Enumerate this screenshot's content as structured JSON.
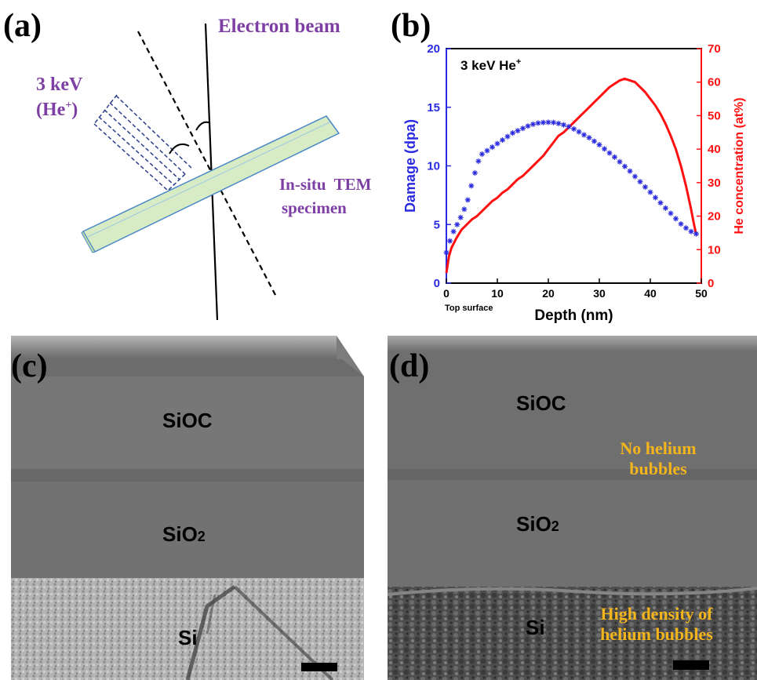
{
  "panel_a": {
    "label": "(a)",
    "beam_label": "Electron beam",
    "ion_label_line1": "3 keV",
    "ion_label_line2": "(He",
    "ion_label_sup": "+",
    "ion_label_close": ")",
    "specimen_line1": "In-situ  TEM",
    "specimen_line2": "specimen"
  },
  "panel_b": {
    "label": "(b)",
    "annotation": "3 keV He",
    "annotation_sup": "+",
    "top_surface": "Top surface",
    "colors": {
      "damage": "#2a2ae0",
      "he": "#ff1010"
    }
  },
  "chart_data": {
    "type": "line",
    "xlabel": "Depth (nm)",
    "ylabel_left": "Damage (dpa)",
    "ylabel_right": "He concentration (at%)",
    "xlim": [
      0,
      50
    ],
    "ylim_left": [
      0,
      20
    ],
    "ylim_right": [
      0,
      70
    ],
    "x_ticks": [
      "0",
      "10",
      "20",
      "30",
      "40",
      "50"
    ],
    "y_left_ticks": [
      "0",
      "5",
      "10",
      "15",
      "20"
    ],
    "y_right_ticks": [
      "0",
      "10",
      "20",
      "30",
      "40",
      "50",
      "60",
      "70"
    ],
    "series": [
      {
        "axis": "left",
        "marker": "star",
        "x": [
          0.0,
          0.7,
          1.4,
          2.1,
          2.8,
          3.5,
          4.2,
          4.9,
          5.6,
          6.3,
          7.0,
          8,
          9,
          10,
          11,
          12,
          13,
          14,
          15,
          16,
          17,
          18,
          19,
          20,
          21,
          22,
          23,
          24,
          25,
          26,
          27,
          28,
          29,
          30,
          31,
          32,
          33,
          34,
          35,
          36,
          37,
          38,
          39,
          40,
          41,
          42,
          43,
          44,
          45,
          46,
          47,
          48,
          49
        ],
        "y": [
          2.6,
          3.6,
          4.4,
          5.0,
          5.6,
          6.3,
          7.1,
          8.3,
          9.4,
          10.4,
          11.0,
          11.3,
          11.6,
          11.9,
          12.2,
          12.5,
          12.8,
          13.0,
          13.2,
          13.4,
          13.55,
          13.65,
          13.7,
          13.72,
          13.7,
          13.62,
          13.5,
          13.35,
          13.15,
          12.9,
          12.65,
          12.4,
          12.1,
          11.8,
          11.45,
          11.1,
          10.75,
          10.35,
          9.95,
          9.55,
          9.1,
          8.65,
          8.2,
          7.75,
          7.3,
          6.85,
          6.4,
          5.95,
          5.5,
          5.05,
          4.7,
          4.4,
          4.2
        ]
      },
      {
        "axis": "right",
        "marker": "line",
        "x": [
          0.0,
          0.5,
          1,
          2,
          3,
          4,
          5,
          6,
          7,
          8,
          9,
          10,
          11,
          12,
          13,
          14,
          15,
          16,
          17,
          18,
          19,
          20,
          21,
          22,
          23,
          24,
          25,
          26,
          27,
          28,
          29,
          30,
          31,
          32,
          33,
          34,
          35,
          36,
          37,
          38,
          39,
          40,
          41,
          42,
          43,
          44,
          45,
          46,
          47,
          47.5,
          48,
          48.5,
          49
        ],
        "y": [
          3,
          8,
          10.5,
          13.5,
          16,
          17.5,
          19,
          20,
          21.5,
          23,
          24.5,
          25.5,
          27,
          28,
          29.5,
          31,
          32,
          33.5,
          35,
          36.5,
          38,
          40,
          42,
          44,
          45,
          46.5,
          48,
          49.5,
          51,
          52.5,
          54,
          55.5,
          57,
          58.5,
          59.5,
          60.5,
          61,
          60.5,
          60,
          58.5,
          57,
          55,
          53,
          50.5,
          47.5,
          44,
          40,
          35,
          29,
          25.5,
          22,
          18,
          14.5
        ]
      }
    ]
  },
  "panel_c": {
    "label": "(c)",
    "layer_top": "SiOC",
    "layer_mid": "SiO",
    "layer_mid_sub": "2",
    "layer_bot": "Si"
  },
  "panel_d": {
    "label": "(d)",
    "layer_top": "SiOC",
    "layer_mid": "SiO",
    "layer_mid_sub": "2",
    "layer_bot": "Si",
    "note_top_line1": "No helium",
    "note_top_line2": "bubbles",
    "note_bot_line1": "High density of",
    "note_bot_line2": "helium bubbles"
  }
}
